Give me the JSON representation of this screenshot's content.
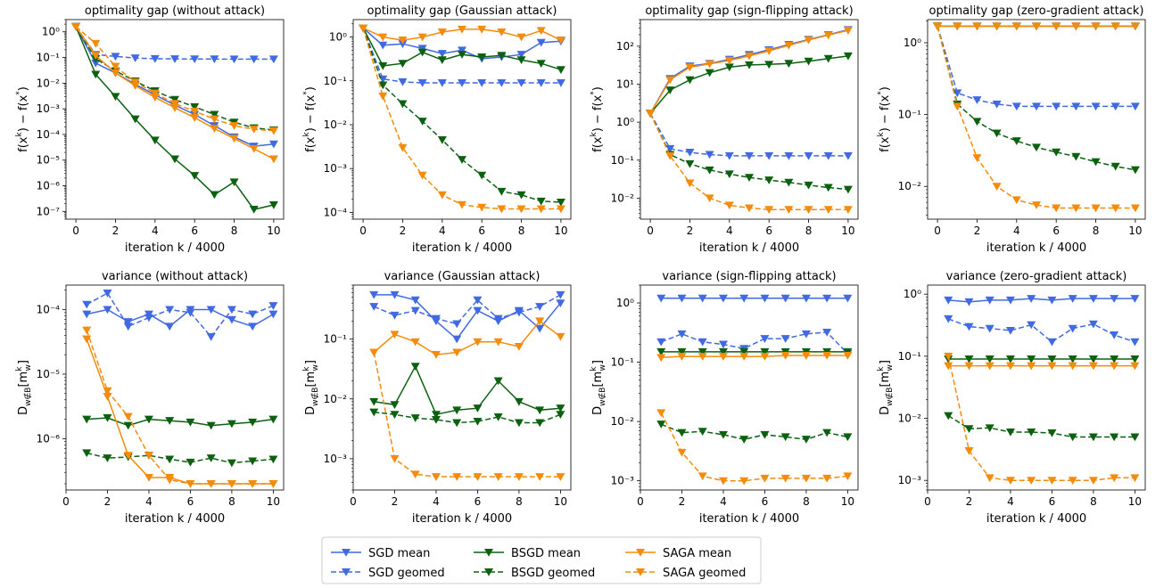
{
  "figure": {
    "legend": [
      {
        "label": "SGD mean",
        "color": "#4169e1",
        "dash": false
      },
      {
        "label": "SGD geomed",
        "color": "#4169e1",
        "dash": true
      },
      {
        "label": "BSGD mean",
        "color": "#0b6110",
        "dash": false
      },
      {
        "label": "BSGD geomed",
        "color": "#0b6110",
        "dash": true
      },
      {
        "label": "SAGA mean",
        "color": "#f58b0a",
        "dash": false
      },
      {
        "label": "SAGA geomed",
        "color": "#f58b0a",
        "dash": true
      }
    ],
    "marker": "triangle-down"
  },
  "chart_data": [
    {
      "type": "line",
      "title": "optimality gap (without attack)",
      "xlabel": "iteration k / 4000",
      "ylabel": "f(x^k) − f(x^*)",
      "yscale": "log",
      "xlim": [
        -0.5,
        10.5
      ],
      "ylim": [
        5e-08,
        3
      ],
      "xticks": [
        0,
        2,
        4,
        6,
        8,
        10
      ],
      "yticks_exp": [
        -7,
        -6,
        -5,
        -4,
        -3,
        -2,
        -1,
        0
      ],
      "x": [
        0,
        1,
        2,
        3,
        4,
        5,
        6,
        7,
        8,
        9,
        10
      ],
      "series": [
        {
          "name": "SGD mean",
          "values": [
            1.6,
            0.06,
            0.025,
            0.009,
            0.0035,
            0.0014,
            0.0006,
            0.00022,
            8e-05,
            3.5e-05,
            4.2e-05
          ]
        },
        {
          "name": "SGD geomed",
          "values": [
            1.6,
            0.13,
            0.11,
            0.095,
            0.09,
            0.088,
            0.087,
            0.087,
            0.086,
            0.086,
            0.086
          ]
        },
        {
          "name": "BSGD mean",
          "values": [
            1.6,
            0.022,
            0.003,
            0.0004,
            6e-05,
            1.1e-05,
            2.5e-06,
            4.5e-07,
            1.4e-06,
            1.2e-07,
            1.8e-07
          ]
        },
        {
          "name": "BSGD geomed",
          "values": [
            1.6,
            0.09,
            0.03,
            0.012,
            0.005,
            0.0023,
            0.0012,
            0.0006,
            0.0003,
            0.00018,
            0.00015
          ]
        },
        {
          "name": "SAGA mean",
          "values": [
            1.6,
            0.12,
            0.025,
            0.008,
            0.0028,
            0.0011,
            0.00045,
            0.00017,
            7e-05,
            2.8e-05,
            1.1e-05
          ]
        },
        {
          "name": "SAGA geomed",
          "values": [
            1.6,
            0.35,
            0.045,
            0.011,
            0.004,
            0.0016,
            0.0008,
            0.0004,
            0.00022,
            0.00016,
            0.00014
          ]
        }
      ]
    },
    {
      "type": "line",
      "title": "optimality gap (Gaussian attack)",
      "xlabel": "iteration k / 4000",
      "ylabel": "f(x^k) − f(x^*)",
      "yscale": "log",
      "xlim": [
        -0.5,
        10.5
      ],
      "ylim": [
        7e-05,
        2.5
      ],
      "xticks": [
        0,
        2,
        4,
        6,
        8,
        10
      ],
      "yticks_exp": [
        -4,
        -3,
        -2,
        -1,
        0
      ],
      "x": [
        0,
        1,
        2,
        3,
        4,
        5,
        6,
        7,
        8,
        9,
        10
      ],
      "series": [
        {
          "name": "SGD mean",
          "values": [
            1.6,
            0.65,
            0.7,
            0.55,
            0.42,
            0.5,
            0.32,
            0.35,
            0.4,
            0.75,
            0.8
          ]
        },
        {
          "name": "SGD geomed",
          "values": [
            1.6,
            0.11,
            0.095,
            0.09,
            0.09,
            0.09,
            0.09,
            0.09,
            0.09,
            0.09,
            0.09
          ]
        },
        {
          "name": "BSGD mean",
          "values": [
            1.6,
            0.22,
            0.25,
            0.45,
            0.3,
            0.4,
            0.35,
            0.38,
            0.3,
            0.25,
            0.18
          ]
        },
        {
          "name": "BSGD geomed",
          "values": [
            1.6,
            0.08,
            0.03,
            0.012,
            0.0045,
            0.0016,
            0.0007,
            0.0003,
            0.00025,
            0.00018,
            0.00017
          ]
        },
        {
          "name": "SAGA mean",
          "values": [
            1.6,
            1.0,
            0.85,
            1.0,
            1.3,
            1.5,
            1.5,
            1.3,
            1.0,
            1.4,
            0.85
          ]
        },
        {
          "name": "SAGA geomed",
          "values": [
            1.6,
            0.045,
            0.003,
            0.0007,
            0.00025,
            0.00015,
            0.00013,
            0.00012,
            0.00012,
            0.00012,
            0.00012
          ]
        }
      ]
    },
    {
      "type": "line",
      "title": "optimality gap (sign-flipping attack)",
      "xlabel": "iteration k / 4000",
      "ylabel": "f(x^k) − f(x^*)",
      "yscale": "log",
      "xlim": [
        -0.5,
        10.5
      ],
      "ylim": [
        0.0028,
        500
      ],
      "xticks": [
        0,
        2,
        4,
        6,
        8,
        10
      ],
      "yticks_exp": [
        -2,
        -1,
        0,
        1,
        2
      ],
      "x": [
        0,
        1,
        2,
        3,
        4,
        5,
        6,
        7,
        8,
        9,
        10
      ],
      "series": [
        {
          "name": "SGD mean",
          "values": [
            1.7,
            14,
            30,
            35,
            45,
            60,
            80,
            110,
            150,
            200,
            270
          ]
        },
        {
          "name": "SGD geomed",
          "values": [
            1.7,
            0.2,
            0.16,
            0.14,
            0.13,
            0.13,
            0.13,
            0.13,
            0.13,
            0.13,
            0.13
          ]
        },
        {
          "name": "BSGD mean",
          "values": [
            1.7,
            7,
            13,
            20,
            28,
            32,
            33,
            35,
            40,
            47,
            55
          ]
        },
        {
          "name": "BSGD geomed",
          "values": [
            1.7,
            0.14,
            0.08,
            0.055,
            0.043,
            0.035,
            0.03,
            0.026,
            0.022,
            0.019,
            0.017
          ]
        },
        {
          "name": "SAGA mean",
          "values": [
            1.7,
            13,
            28,
            34,
            42,
            55,
            75,
            105,
            145,
            195,
            260
          ]
        },
        {
          "name": "SAGA geomed",
          "values": [
            1.7,
            0.13,
            0.025,
            0.01,
            0.0065,
            0.0055,
            0.005,
            0.005,
            0.005,
            0.005,
            0.005
          ]
        }
      ]
    },
    {
      "type": "line",
      "title": "optimality gap (zero-gradient attack)",
      "xlabel": "iteration k / 4000",
      "ylabel": "f(x^k) − f(x^*)",
      "yscale": "log",
      "xlim": [
        -0.5,
        10.5
      ],
      "ylim": [
        0.0035,
        2.1
      ],
      "xticks": [
        0,
        2,
        4,
        6,
        8,
        10
      ],
      "yticks_exp": [
        -2,
        -1,
        0
      ],
      "x": [
        0,
        1,
        2,
        3,
        4,
        5,
        6,
        7,
        8,
        9,
        10
      ],
      "series": [
        {
          "name": "SGD mean",
          "values": [
            1.7,
            1.7,
            1.7,
            1.7,
            1.7,
            1.7,
            1.7,
            1.7,
            1.7,
            1.7,
            1.7
          ]
        },
        {
          "name": "SGD geomed",
          "values": [
            1.7,
            0.2,
            0.16,
            0.14,
            0.13,
            0.13,
            0.13,
            0.13,
            0.13,
            0.13,
            0.13
          ]
        },
        {
          "name": "BSGD mean",
          "values": [
            1.7,
            1.7,
            1.7,
            1.7,
            1.7,
            1.7,
            1.7,
            1.7,
            1.7,
            1.7,
            1.7
          ]
        },
        {
          "name": "BSGD geomed",
          "values": [
            1.7,
            0.14,
            0.08,
            0.055,
            0.043,
            0.035,
            0.03,
            0.026,
            0.022,
            0.019,
            0.017
          ]
        },
        {
          "name": "SAGA mean",
          "values": [
            1.7,
            1.7,
            1.7,
            1.7,
            1.7,
            1.7,
            1.7,
            1.7,
            1.7,
            1.7,
            1.7
          ]
        },
        {
          "name": "SAGA geomed",
          "values": [
            1.7,
            0.13,
            0.025,
            0.01,
            0.0065,
            0.0055,
            0.005,
            0.005,
            0.005,
            0.005,
            0.005
          ]
        }
      ]
    },
    {
      "type": "line",
      "title": "variance (without attack)",
      "xlabel": "iteration k / 4000",
      "ylabel": "D_{w∉B}[m_w^k]",
      "yscale": "log",
      "xlim": [
        0,
        10.5
      ],
      "ylim": [
        1.6e-07,
        0.00024
      ],
      "xticks": [
        0,
        2,
        4,
        6,
        8,
        10
      ],
      "yticks_exp": [
        -6,
        -5,
        -4
      ],
      "x": [
        1,
        2,
        3,
        4,
        5,
        6,
        7,
        8,
        9,
        10
      ],
      "series": [
        {
          "name": "SGD mean",
          "values": [
            8.5e-05,
            0.0001,
            6.5e-05,
            8.5e-05,
            5.5e-05,
            0.0001,
            0.0001,
            7e-05,
            5.5e-05,
            8.5e-05
          ]
        },
        {
          "name": "SGD geomed",
          "values": [
            0.00012,
            0.00018,
            5.5e-05,
            7.5e-05,
            0.0001,
            9e-05,
            3.8e-05,
            0.0001,
            8.5e-05,
            0.000115
          ]
        },
        {
          "name": "BSGD mean",
          "values": [
            2e-06,
            2.1e-06,
            1.6e-06,
            2e-06,
            1.9e-06,
            1.8e-06,
            1.6e-06,
            1.7e-06,
            1.8e-06,
            2e-06
          ]
        },
        {
          "name": "BSGD geomed",
          "values": [
            6e-07,
            5e-07,
            5.2e-07,
            5.5e-07,
            4.8e-07,
            4.3e-07,
            5e-07,
            4.2e-07,
            4.5e-07,
            4.8e-07
          ]
        },
        {
          "name": "SAGA mean",
          "values": [
            3.5e-05,
            4.5e-06,
            5.5e-07,
            2.5e-07,
            2.5e-07,
            2e-07,
            2e-07,
            2e-07,
            2e-07,
            2e-07
          ]
        },
        {
          "name": "SAGA geomed",
          "values": [
            4.8e-05,
            5.5e-06,
            2.2e-06,
            5.5e-07,
            2.3e-07,
            2e-07,
            2e-07,
            2e-07,
            2e-07,
            2e-07
          ]
        }
      ]
    },
    {
      "type": "line",
      "title": "variance (Gaussian attack)",
      "xlabel": "iteration k / 4000",
      "ylabel": "D_{w∉B}[m_w^k]",
      "yscale": "log",
      "xlim": [
        0,
        10.5
      ],
      "ylim": [
        0.0003,
        0.8
      ],
      "xticks": [
        0,
        2,
        4,
        6,
        8,
        10
      ],
      "yticks_exp": [
        -3,
        -2,
        -1
      ],
      "x": [
        1,
        2,
        3,
        4,
        5,
        6,
        7,
        8,
        9,
        10
      ],
      "series": [
        {
          "name": "SGD mean",
          "values": [
            0.55,
            0.55,
            0.45,
            0.2,
            0.1,
            0.3,
            0.2,
            0.3,
            0.15,
            0.4
          ]
        },
        {
          "name": "SGD geomed",
          "values": [
            0.35,
            0.25,
            0.3,
            0.22,
            0.18,
            0.45,
            0.22,
            0.28,
            0.35,
            0.55
          ]
        },
        {
          "name": "BSGD mean",
          "values": [
            0.009,
            0.008,
            0.035,
            0.0055,
            0.0065,
            0.007,
            0.02,
            0.009,
            0.0065,
            0.007
          ]
        },
        {
          "name": "BSGD geomed",
          "values": [
            0.006,
            0.0055,
            0.0048,
            0.0045,
            0.004,
            0.0042,
            0.005,
            0.004,
            0.004,
            0.0055
          ]
        },
        {
          "name": "SAGA mean",
          "values": [
            0.06,
            0.12,
            0.09,
            0.055,
            0.06,
            0.09,
            0.09,
            0.075,
            0.2,
            0.11
          ]
        },
        {
          "name": "SAGA geomed",
          "values": [
            0.06,
            0.001,
            0.00055,
            0.0005,
            0.0005,
            0.0005,
            0.0005,
            0.0005,
            0.0005,
            0.0005
          ]
        }
      ]
    },
    {
      "type": "line",
      "title": "variance (sign-flipping attack)",
      "xlabel": "iteration k / 4000",
      "ylabel": "D_{w∉B}[m_w^k]",
      "yscale": "log",
      "xlim": [
        0,
        10.5
      ],
      "ylim": [
        0.0007,
        2
      ],
      "xticks": [
        0,
        2,
        4,
        6,
        8,
        10
      ],
      "yticks_exp": [
        -3,
        -2,
        -1,
        0
      ],
      "x": [
        1,
        2,
        3,
        4,
        5,
        6,
        7,
        8,
        9,
        10
      ],
      "series": [
        {
          "name": "SGD mean",
          "values": [
            1.2,
            1.2,
            1.2,
            1.2,
            1.2,
            1.2,
            1.2,
            1.2,
            1.2,
            1.2
          ]
        },
        {
          "name": "SGD geomed",
          "values": [
            0.22,
            0.3,
            0.22,
            0.2,
            0.17,
            0.25,
            0.25,
            0.3,
            0.32,
            0.14
          ]
        },
        {
          "name": "BSGD mean",
          "values": [
            0.15,
            0.15,
            0.15,
            0.15,
            0.15,
            0.15,
            0.15,
            0.15,
            0.15,
            0.15
          ]
        },
        {
          "name": "BSGD geomed",
          "values": [
            0.009,
            0.0065,
            0.0068,
            0.006,
            0.005,
            0.006,
            0.0055,
            0.005,
            0.0065,
            0.0055
          ]
        },
        {
          "name": "SAGA mean",
          "values": [
            0.12,
            0.125,
            0.125,
            0.125,
            0.125,
            0.125,
            0.13,
            0.13,
            0.13,
            0.13
          ]
        },
        {
          "name": "SAGA geomed",
          "values": [
            0.014,
            0.003,
            0.0012,
            0.001,
            0.001,
            0.0011,
            0.0011,
            0.0011,
            0.0011,
            0.0012
          ]
        }
      ]
    },
    {
      "type": "line",
      "title": "variance (zero-gradient attack)",
      "xlabel": "iteration k / 4000",
      "ylabel": "D_{w∉B}[m_w^k]",
      "yscale": "log",
      "xlim": [
        0,
        10.5
      ],
      "ylim": [
        0.0007,
        1.4
      ],
      "xticks": [
        0,
        2,
        4,
        6,
        8,
        10
      ],
      "yticks_exp": [
        -3,
        -2,
        -1,
        0
      ],
      "x": [
        1,
        2,
        3,
        4,
        5,
        6,
        7,
        8,
        9,
        10
      ],
      "series": [
        {
          "name": "SGD mean",
          "values": [
            0.8,
            0.75,
            0.8,
            0.8,
            0.85,
            0.8,
            0.85,
            0.85,
            0.85,
            0.85
          ]
        },
        {
          "name": "SGD geomed",
          "values": [
            0.4,
            0.3,
            0.28,
            0.26,
            0.32,
            0.17,
            0.28,
            0.33,
            0.22,
            0.17
          ]
        },
        {
          "name": "BSGD mean",
          "values": [
            0.09,
            0.09,
            0.09,
            0.09,
            0.09,
            0.09,
            0.09,
            0.09,
            0.09,
            0.09
          ]
        },
        {
          "name": "BSGD geomed",
          "values": [
            0.011,
            0.0068,
            0.007,
            0.006,
            0.006,
            0.0058,
            0.005,
            0.005,
            0.005,
            0.005
          ]
        },
        {
          "name": "SAGA mean",
          "values": [
            0.07,
            0.07,
            0.07,
            0.07,
            0.07,
            0.07,
            0.07,
            0.07,
            0.07,
            0.07
          ]
        },
        {
          "name": "SAGA geomed",
          "values": [
            0.1,
            0.003,
            0.0011,
            0.001,
            0.001,
            0.001,
            0.001,
            0.001,
            0.0011,
            0.0011
          ]
        }
      ]
    }
  ]
}
